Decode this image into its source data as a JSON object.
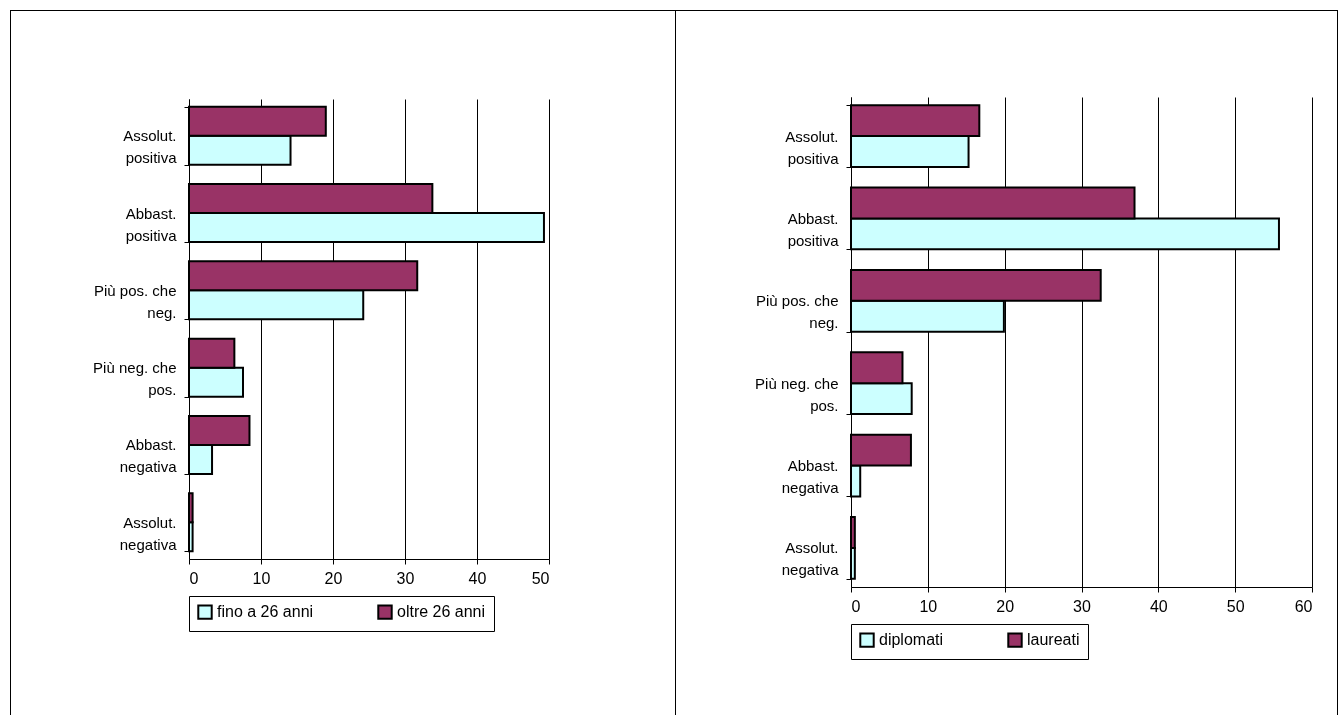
{
  "chart_data": [
    {
      "type": "bar",
      "orientation": "horizontal",
      "categories": [
        "Assolut. positiva",
        "Abbast. positiva",
        "Più pos. che neg.",
        "Più neg. che pos.",
        "Abbast. negativa",
        "Assolut. negativa"
      ],
      "series": [
        {
          "name": "fino a 26 anni",
          "color": "#ccffff",
          "values": [
            14.1,
            49.3,
            24.2,
            7.5,
            3.2,
            0.5
          ]
        },
        {
          "name": "oltre 26 anni",
          "color": "#993366",
          "values": [
            19.0,
            33.8,
            31.7,
            6.3,
            8.4,
            0.5
          ]
        }
      ],
      "xlim": [
        0,
        50
      ],
      "xticks": [
        0,
        10,
        20,
        30,
        40,
        50
      ],
      "grid": "x",
      "legend": "bottom"
    },
    {
      "type": "bar",
      "orientation": "horizontal",
      "categories": [
        "Assolut. positiva",
        "Abbast. positiva",
        "Più pos. che neg.",
        "Più neg. che pos.",
        "Abbast. negativa",
        "Assolut. negativa"
      ],
      "series": [
        {
          "name": "diplomati",
          "color": "#ccffff",
          "values": [
            15.3,
            55.7,
            19.9,
            7.9,
            1.2,
            0.5
          ]
        },
        {
          "name": "laureati",
          "color": "#993366",
          "values": [
            16.7,
            36.9,
            32.5,
            6.7,
            7.8,
            0.5
          ]
        }
      ],
      "xlim": [
        0,
        60
      ],
      "xticks": [
        0,
        10,
        20,
        30,
        40,
        50,
        60
      ],
      "grid": "x",
      "legend": "bottom"
    }
  ]
}
